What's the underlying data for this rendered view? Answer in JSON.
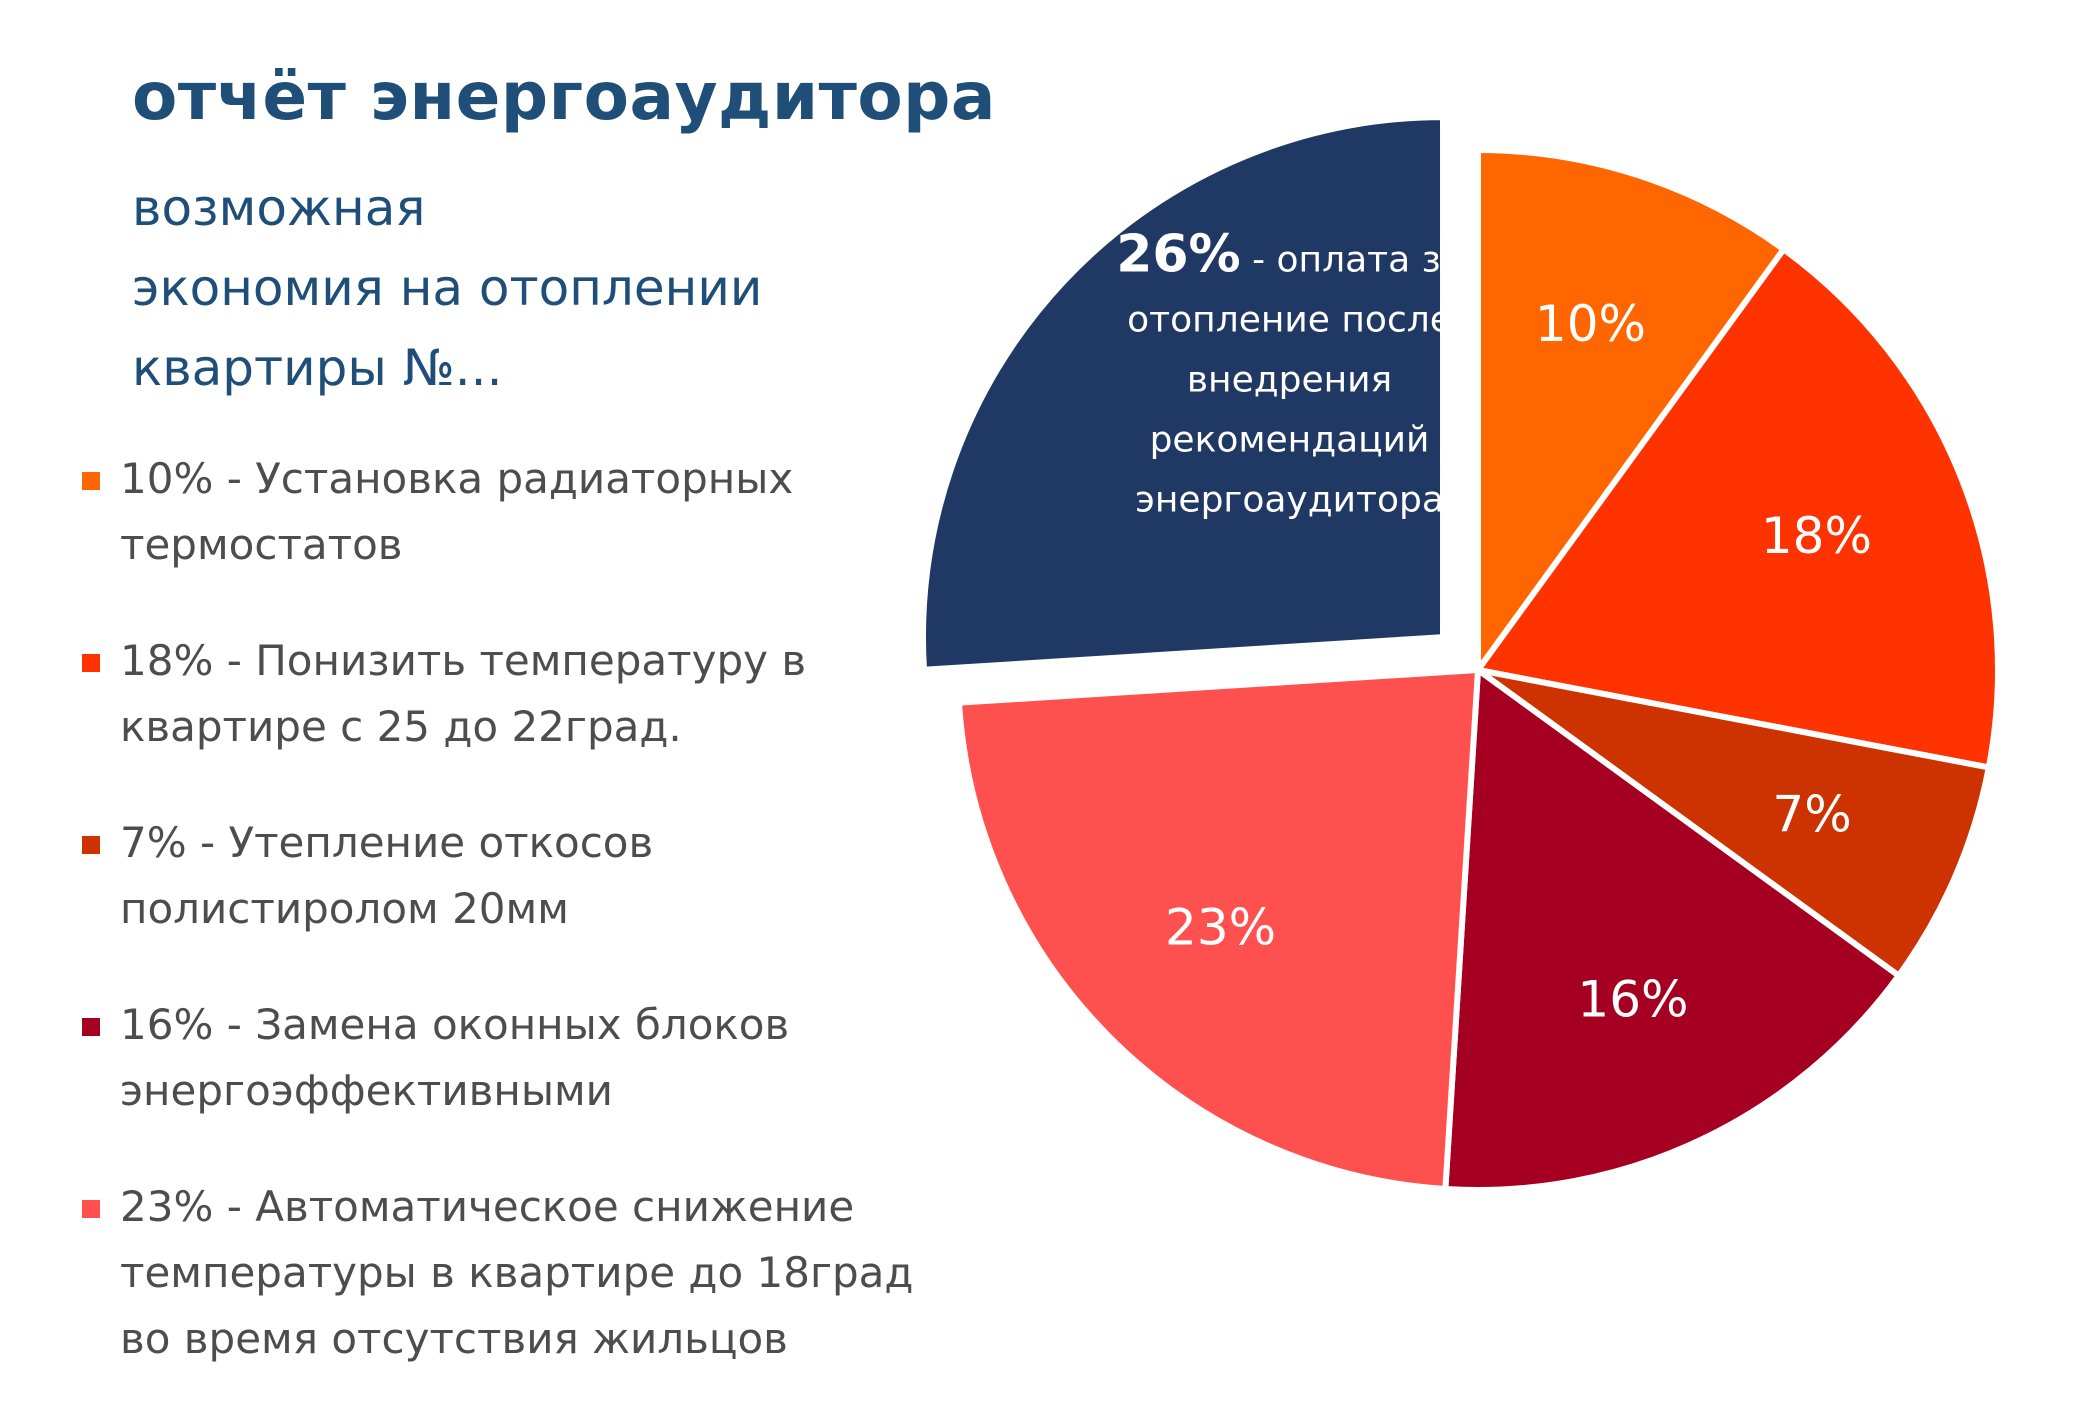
{
  "title": "отчёт энергоаудитора",
  "subtitle_lines": [
    "возможная",
    "экономия на отоплении",
    "квартиры №..."
  ],
  "legend": [
    {
      "text": "10% - Установка радиаторных термостатов",
      "color": "#ff6600"
    },
    {
      "text": "18% - Понизить температуру в квартире с 25 до 22град.",
      "color": "#ff3300"
    },
    {
      "text": "7% - Утепление откосов полистиролом 20мм",
      "color": "#cc3300"
    },
    {
      "text": "16% - Замена оконных блоков энергоэффективными",
      "color": "#a50021"
    },
    {
      "text": "23% - Автоматическое снижение температуры в квартире до 18град во время отсутствия жильцов",
      "color": "#ff5050"
    }
  ],
  "chart_data": {
    "type": "pie",
    "slices": [
      {
        "value": 10,
        "label": "10%",
        "color": "#ff6600"
      },
      {
        "value": 18,
        "label": "18%",
        "color": "#ff3300"
      },
      {
        "value": 7,
        "label": "7%",
        "color": "#cc3300"
      },
      {
        "value": 16,
        "label": "16%",
        "color": "#a50021"
      },
      {
        "value": 23,
        "label": "23%",
        "color": "#ff5050"
      },
      {
        "value": 26,
        "label": "26%",
        "color": "#203864",
        "exploded": true,
        "note_lines": [
          " - оплата за",
          "отопление после",
          "внедрения",
          "рекомендаций",
          "энергоаудитора"
        ]
      }
    ]
  }
}
